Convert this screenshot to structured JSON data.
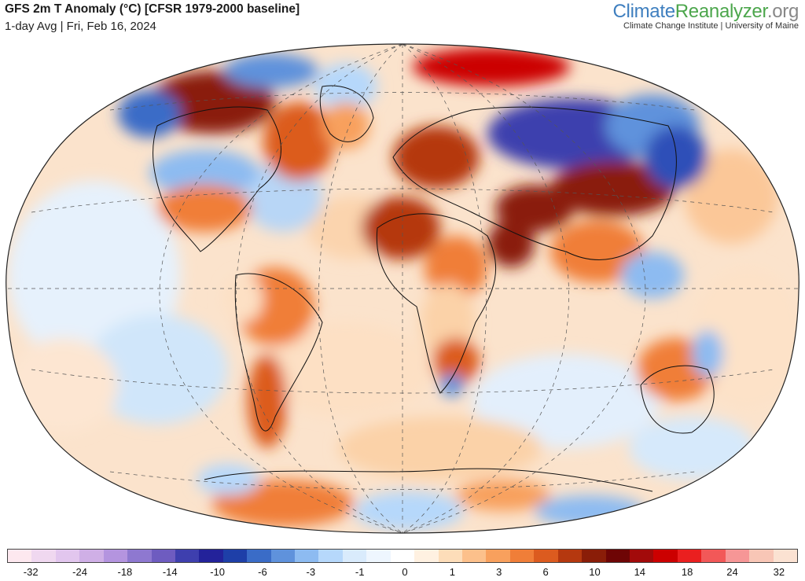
{
  "header": {
    "title": "GFS 2m T Anomaly (°C) [CFSR 1979-2000 baseline]",
    "subtitle": "1-day Avg | Fri, Feb 16, 2024"
  },
  "brand": {
    "name_part1": "Climate",
    "name_part2": "Reanalyzer",
    "name_part3": ".org",
    "tagline": "Climate Change Institute | University of Maine"
  },
  "map": {
    "projection": "Winkel tripel / oval world",
    "graticule": "dashed",
    "variable": "2m temperature anomaly",
    "warm_color": "#c8501a",
    "cold_color": "#2b3fa8"
  },
  "legend": {
    "colors": [
      "#fde8ef",
      "#f0d8f0",
      "#e2c6ee",
      "#cfafe6",
      "#b494df",
      "#8e78d0",
      "#6e5cc0",
      "#3e3fae",
      "#23229a",
      "#1e3fa8",
      "#3a6cc7",
      "#5f92dc",
      "#8dbbf1",
      "#b6d8fb",
      "#d9ebfc",
      "#eef6fe",
      "#ffffff",
      "#fff1e1",
      "#fdddb9",
      "#fcc08b",
      "#f8a05d",
      "#f07e38",
      "#dc5b1f",
      "#b5380f",
      "#8a1d08",
      "#6e0505",
      "#a20a0a",
      "#cc0000",
      "#ea1f1f",
      "#f25858",
      "#f69696",
      "#f8c6b6",
      "#fbe2d2"
    ],
    "ticks": [
      {
        "label": "-32",
        "pos": 3
      },
      {
        "label": "-24",
        "pos": 9.2
      },
      {
        "label": "-18",
        "pos": 14.9
      },
      {
        "label": "-14",
        "pos": 20.6
      },
      {
        "label": "-10",
        "pos": 26.6
      },
      {
        "label": "-6",
        "pos": 32.3
      },
      {
        "label": "-3",
        "pos": 38.4
      },
      {
        "label": "-1",
        "pos": 44.6
      },
      {
        "label": "0",
        "pos": 50.3
      },
      {
        "label": "1",
        "pos": 56.3
      },
      {
        "label": "3",
        "pos": 62.2
      },
      {
        "label": "6",
        "pos": 68.1
      },
      {
        "label": "10",
        "pos": 74.3
      },
      {
        "label": "14",
        "pos": 80
      },
      {
        "label": "18",
        "pos": 86
      },
      {
        "label": "24",
        "pos": 91.7
      },
      {
        "label": "32",
        "pos": 97.6
      }
    ]
  }
}
